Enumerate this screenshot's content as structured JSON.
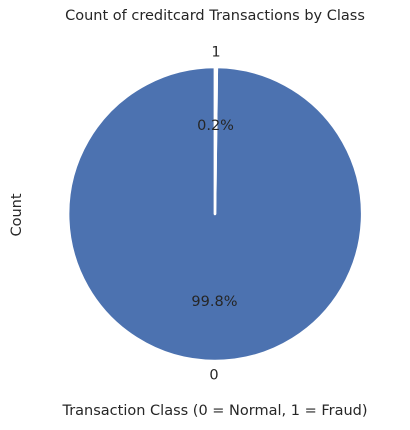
{
  "chart_data": {
    "type": "pie",
    "title": "Count of creditcard Transactions by Class",
    "xlabel": "Transaction Class (0 = Normal, 1 = Fraud)",
    "ylabel": "Count",
    "slices": [
      {
        "label": "0",
        "value": 99.8,
        "pct_label": "99.8%",
        "color": "#4c72b0"
      },
      {
        "label": "1",
        "value": 0.2,
        "pct_label": "0.2%",
        "color": "#dd8452"
      }
    ],
    "start_angle": 90,
    "counterclock": true,
    "edge_color": "#ffffff",
    "legend": "none"
  }
}
